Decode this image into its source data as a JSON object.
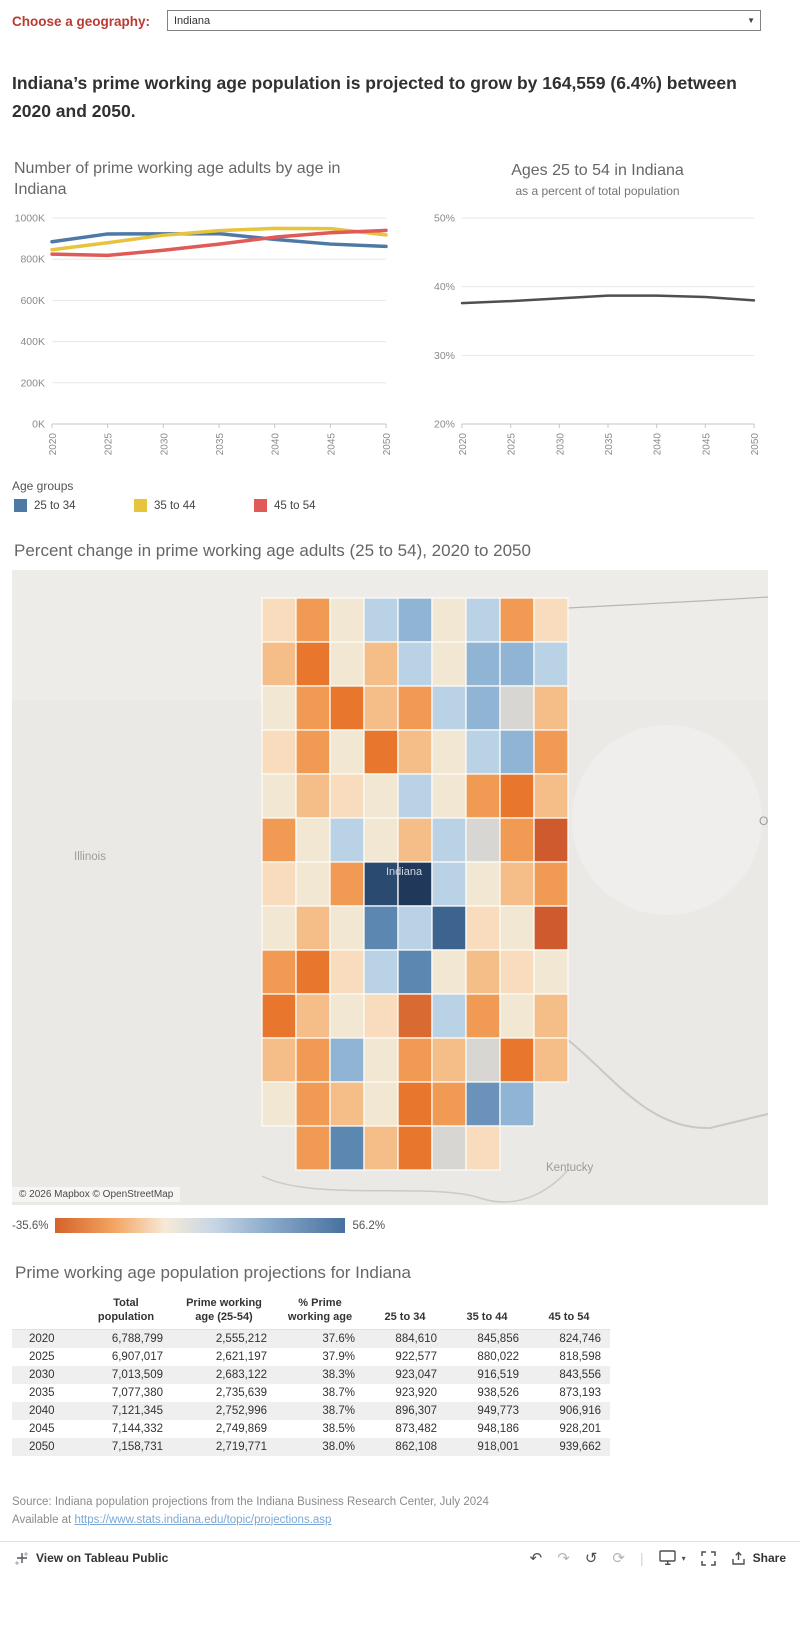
{
  "geography": {
    "label": "Choose a geography:",
    "value": "Indiana"
  },
  "headline": "Indiana’s prime working age population is projected to grow by 164,559 (6.4%) between 2020 and 2050.",
  "chart_data": [
    {
      "type": "line",
      "title": "Number of prime working age adults by age in Indiana",
      "x": [
        "2020",
        "2025",
        "2030",
        "2035",
        "2040",
        "2045",
        "2050"
      ],
      "ylim": [
        0,
        1000000
      ],
      "ytick_values": [
        0,
        200000,
        400000,
        600000,
        800000,
        1000000
      ],
      "ytick_labels": [
        "0K",
        "200K",
        "400K",
        "600K",
        "800K",
        "1000K"
      ],
      "grid": "horizontal",
      "legend_position": "below",
      "series": [
        {
          "name": "25 to 34",
          "color": "#4e79a7",
          "values": [
            884610,
            922577,
            923047,
            923920,
            896307,
            873482,
            862108
          ]
        },
        {
          "name": "35 to 44",
          "color": "#e8c33c",
          "values": [
            845856,
            880022,
            916519,
            938526,
            949773,
            948186,
            918001
          ]
        },
        {
          "name": "45 to 54",
          "color": "#e05a57",
          "values": [
            824746,
            818598,
            843556,
            873193,
            906916,
            928201,
            939662
          ]
        }
      ]
    },
    {
      "type": "line",
      "title": "Ages 25 to 54 in Indiana",
      "subtitle": "as a percent of total population",
      "x": [
        "2020",
        "2025",
        "2030",
        "2035",
        "2040",
        "2045",
        "2050"
      ],
      "ylim": [
        20,
        50
      ],
      "ytick_values": [
        20,
        30,
        40,
        50
      ],
      "ytick_labels": [
        "20%",
        "30%",
        "40%",
        "50%"
      ],
      "grid": "horizontal",
      "series": [
        {
          "name": "% prime working age",
          "color": "#4f4f4f",
          "values": [
            37.6,
            37.9,
            38.3,
            38.7,
            38.7,
            38.5,
            38.0
          ]
        }
      ]
    }
  ],
  "legend": {
    "title": "Age groups",
    "items": [
      {
        "label": "25 to 34",
        "color": "#4e79a7"
      },
      {
        "label": "35 to 44",
        "color": "#e8c33c"
      },
      {
        "label": "45 to 54",
        "color": "#e05a57"
      }
    ]
  },
  "map": {
    "title": "Percent change in prime working age adults (25 to 54), 2020 to 2050",
    "labels": {
      "illinois": "Illinois",
      "state": "Indiana",
      "kentucky": "Kentucky",
      "ohio_partial": "O"
    },
    "attribution": "© 2026 Mapbox  © OpenStreetMap",
    "legend": {
      "min_label": "-35.6%",
      "max_label": "56.2%",
      "gradient": [
        "#d4622b",
        "#f6ead7",
        "#46719f"
      ]
    },
    "grid": [
      [
        "#f8dcbd",
        "#f09a53",
        "#f2e7d3",
        "#b9d2e5",
        "#8fb4d4",
        "#f2e7d3",
        "#b9d2e5",
        "#f09a53",
        "#f8dcbd"
      ],
      [
        "#f5bd87",
        "#e8762d",
        "#f2e7d3",
        "#f5bd87",
        "#b9d2e5",
        "#f2e7d3",
        "#8fb4d4",
        "#8fb4d4",
        "#b9d2e5"
      ],
      [
        "#f2e7d3",
        "#f09a53",
        "#e8762d",
        "#f5bd87",
        "#f09a53",
        "#b9d2e5",
        "#8fb4d4",
        "#d8d6d2",
        "#f5bd87"
      ],
      [
        "#f8dcbd",
        "#f09a53",
        "#f2e7d3",
        "#e8762d",
        "#f5bd87",
        "#f2e7d3",
        "#b9d2e5",
        "#8fb4d4",
        "#f09a53"
      ],
      [
        "#f2e7d3",
        "#f5bd87",
        "#f8dcbd",
        "#f2e7d3",
        "#b9d2e5",
        "#f2e7d3",
        "#f09a53",
        "#e8762d",
        "#f5bd87"
      ],
      [
        "#f09a53",
        "#f2e7d3",
        "#b9d2e5",
        "#f2e7d3",
        "#f5bd87",
        "#b9d2e5",
        "#d8d6d2",
        "#f09a53",
        "#cf5a2d"
      ],
      [
        "#f8dcbd",
        "#f2e7d3",
        "#f09a53",
        "#2b4a70",
        "#20395a",
        "#b9d2e5",
        "#f2e7d3",
        "#f5bd87",
        "#f09a53"
      ],
      [
        "#f2e7d3",
        "#f5bd87",
        "#f2e7d3",
        "#5b87b0",
        "#b9d2e5",
        "#3d638f",
        "#f8dcbd",
        "#f2e7d3",
        "#cf5a2d"
      ],
      [
        "#f09a53",
        "#e8762d",
        "#f8dcbd",
        "#b9d2e5",
        "#5b87b0",
        "#f2e7d3",
        "#f5bd87",
        "#f8dcbd",
        "#f2e7d3"
      ],
      [
        "#e8762d",
        "#f5bd87",
        "#f2e7d3",
        "#f8dcbd",
        "#d96a31",
        "#b9d2e5",
        "#f09a53",
        "#f2e7d3",
        "#f5bd87"
      ],
      [
        "#f5bd87",
        "#f09a53",
        "#8fb4d4",
        "#f2e7d3",
        "#f09a53",
        "#f5bd87",
        "#d8d6d2",
        "#e8762d",
        "#f5bd87"
      ],
      [
        "#f2e7d3",
        "#f09a53",
        "#f5bd87",
        "#f2e7d3",
        "#e8762d",
        "#f09a53",
        "#6b92ba",
        "#8fb4d4",
        ""
      ],
      [
        "",
        "#f09a53",
        "#5b87b0",
        "#f5bd87",
        "#e8762d",
        "#d8d6d2",
        "#f8dcbd",
        "",
        ""
      ]
    ]
  },
  "table": {
    "title": "Prime working age population projections for Indiana",
    "columns": [
      "",
      "Total population",
      "Prime working age (25-54)",
      "% Prime working age",
      "25 to 34",
      "35 to 44",
      "45 to 54"
    ],
    "rows": [
      [
        "2020",
        "6,788,799",
        "2,555,212",
        "37.6%",
        "884,610",
        "845,856",
        "824,746"
      ],
      [
        "2025",
        "6,907,017",
        "2,621,197",
        "37.9%",
        "922,577",
        "880,022",
        "818,598"
      ],
      [
        "2030",
        "7,013,509",
        "2,683,122",
        "38.3%",
        "923,047",
        "916,519",
        "843,556"
      ],
      [
        "2035",
        "7,077,380",
        "2,735,639",
        "38.7%",
        "923,920",
        "938,526",
        "873,193"
      ],
      [
        "2040",
        "7,121,345",
        "2,752,996",
        "38.7%",
        "896,307",
        "949,773",
        "906,916"
      ],
      [
        "2045",
        "7,144,332",
        "2,749,869",
        "38.5%",
        "873,482",
        "948,186",
        "928,201"
      ],
      [
        "2050",
        "7,158,731",
        "2,719,771",
        "38.0%",
        "862,108",
        "918,001",
        "939,662"
      ]
    ]
  },
  "source": {
    "line1": "Source: Indiana population projections from the Indiana Business Research Center, July 2024",
    "prefix": "Available at ",
    "link_text": "https://www.stats.indiana.edu/topic/projections.asp"
  },
  "toolbar": {
    "brand": "View on Tableau Public",
    "share": "Share"
  }
}
